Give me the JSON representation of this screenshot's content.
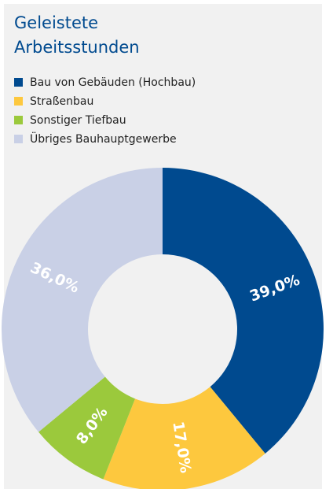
{
  "chart_data": {
    "type": "donut",
    "title": "Geleistete Arbeitsstunden",
    "categories": [
      "Bau von Gebäuden (Hochbau)",
      "Straßenbau",
      "Sonstiger Tiefbau",
      "Übriges Bauhauptgewerbe"
    ],
    "values": [
      39,
      17,
      8,
      36
    ],
    "value_labels": [
      "39,0%",
      "17,0%",
      "8,0%",
      "36,0%"
    ],
    "colors": [
      "#004a8f",
      "#fdc83e",
      "#9bc93c",
      "#c9d0e6"
    ]
  }
}
